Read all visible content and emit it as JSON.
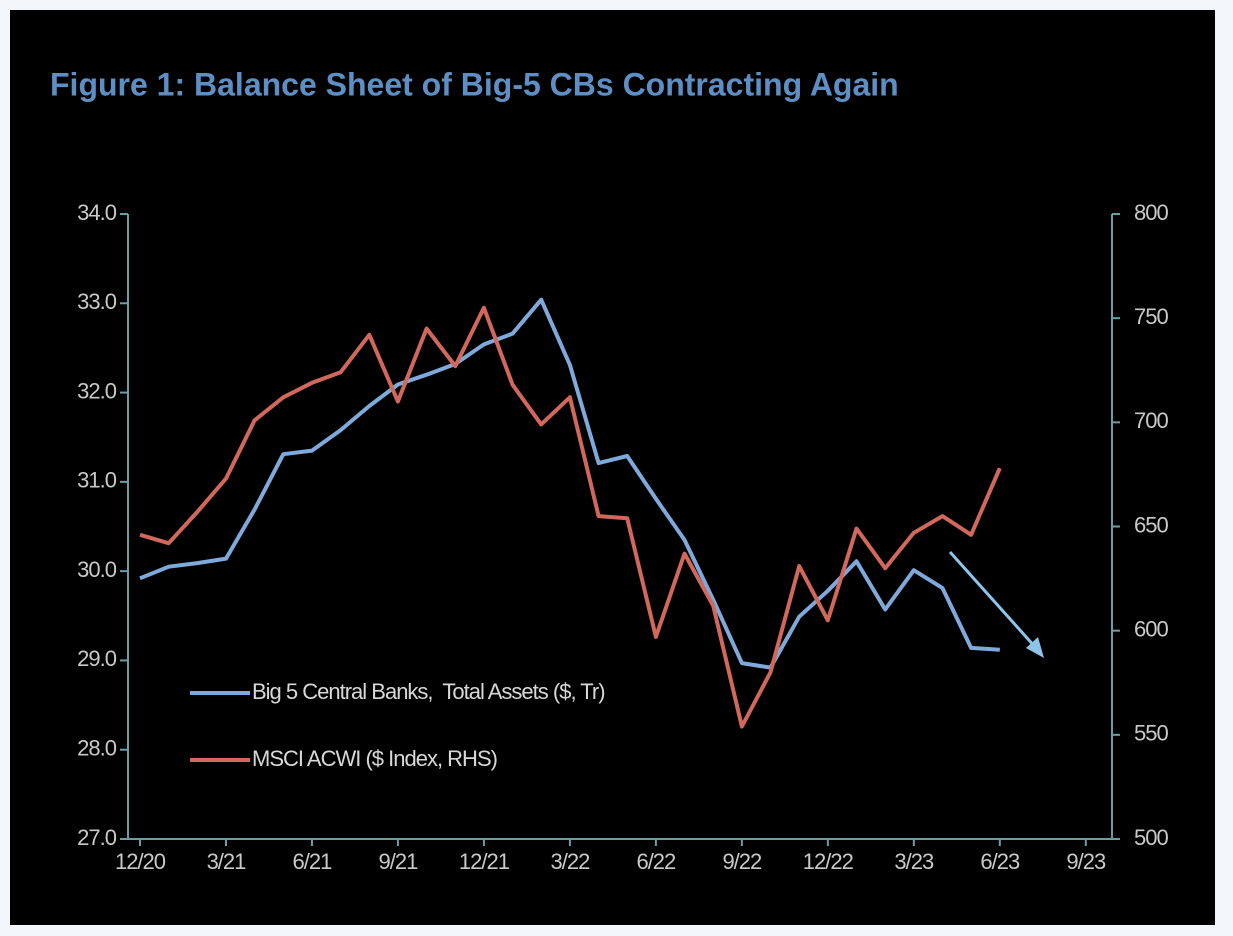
{
  "chart_data": {
    "type": "line",
    "title": "Figure 1: Balance Sheet of Big-5 CBs Contracting Again",
    "x": [
      "12/20",
      "1/21",
      "2/21",
      "3/21",
      "4/21",
      "5/21",
      "6/21",
      "7/21",
      "8/21",
      "9/21",
      "10/21",
      "11/21",
      "12/21",
      "1/22",
      "2/22",
      "3/22",
      "4/22",
      "5/22",
      "6/22",
      "7/22",
      "8/22",
      "9/22",
      "10/22",
      "11/22",
      "12/22",
      "1/23",
      "2/23",
      "3/23",
      "4/23",
      "5/23",
      "6/23"
    ],
    "series": [
      {
        "name": "Big 5 Central Banks,  Total Assets ($, Tr)",
        "color": "#7fa9db",
        "values": [
          29.92,
          30.05,
          30.09,
          30.14,
          30.69,
          31.31,
          31.35,
          31.58,
          31.85,
          32.09,
          32.2,
          32.32,
          32.54,
          32.66,
          33.04,
          32.31,
          31.21,
          31.29,
          30.81,
          30.35,
          29.68,
          28.97,
          28.92,
          29.49,
          29.78,
          30.11,
          29.57,
          30.01,
          29.81,
          29.14,
          29.12
        ]
      },
      {
        "name": "MSCI ACWI ($ Index, RHS)",
        "color": "#d2685b",
        "axis": "y2",
        "values": [
          646,
          642,
          657,
          673,
          701,
          712,
          719,
          724,
          742,
          710,
          745,
          727,
          755,
          718,
          699,
          712,
          655,
          654,
          597,
          637,
          612,
          554,
          580,
          631,
          605,
          649,
          630,
          647,
          655,
          646,
          678
        ]
      }
    ],
    "ylim": [
      27,
      34
    ],
    "yticks": [
      {
        "value": 27,
        "label": "27.0"
      },
      {
        "value": 28,
        "label": "28.0"
      },
      {
        "value": 29,
        "label": "29.0"
      },
      {
        "value": 30,
        "label": "30.0"
      },
      {
        "value": 31,
        "label": "31.0"
      },
      {
        "value": 32,
        "label": "32.0"
      },
      {
        "value": 33,
        "label": "33.0"
      },
      {
        "value": 34,
        "label": "34.0"
      }
    ],
    "y2lim": [
      500,
      800
    ],
    "y2ticks": [
      500,
      550,
      600,
      650,
      700,
      750,
      800
    ],
    "xticks": [
      "12/20",
      "3/21",
      "6/21",
      "9/21",
      "12/21",
      "3/22",
      "6/22",
      "9/22",
      "12/22",
      "3/23",
      "6/23",
      "9/23"
    ],
    "legend": "lower left",
    "grid": false
  }
}
